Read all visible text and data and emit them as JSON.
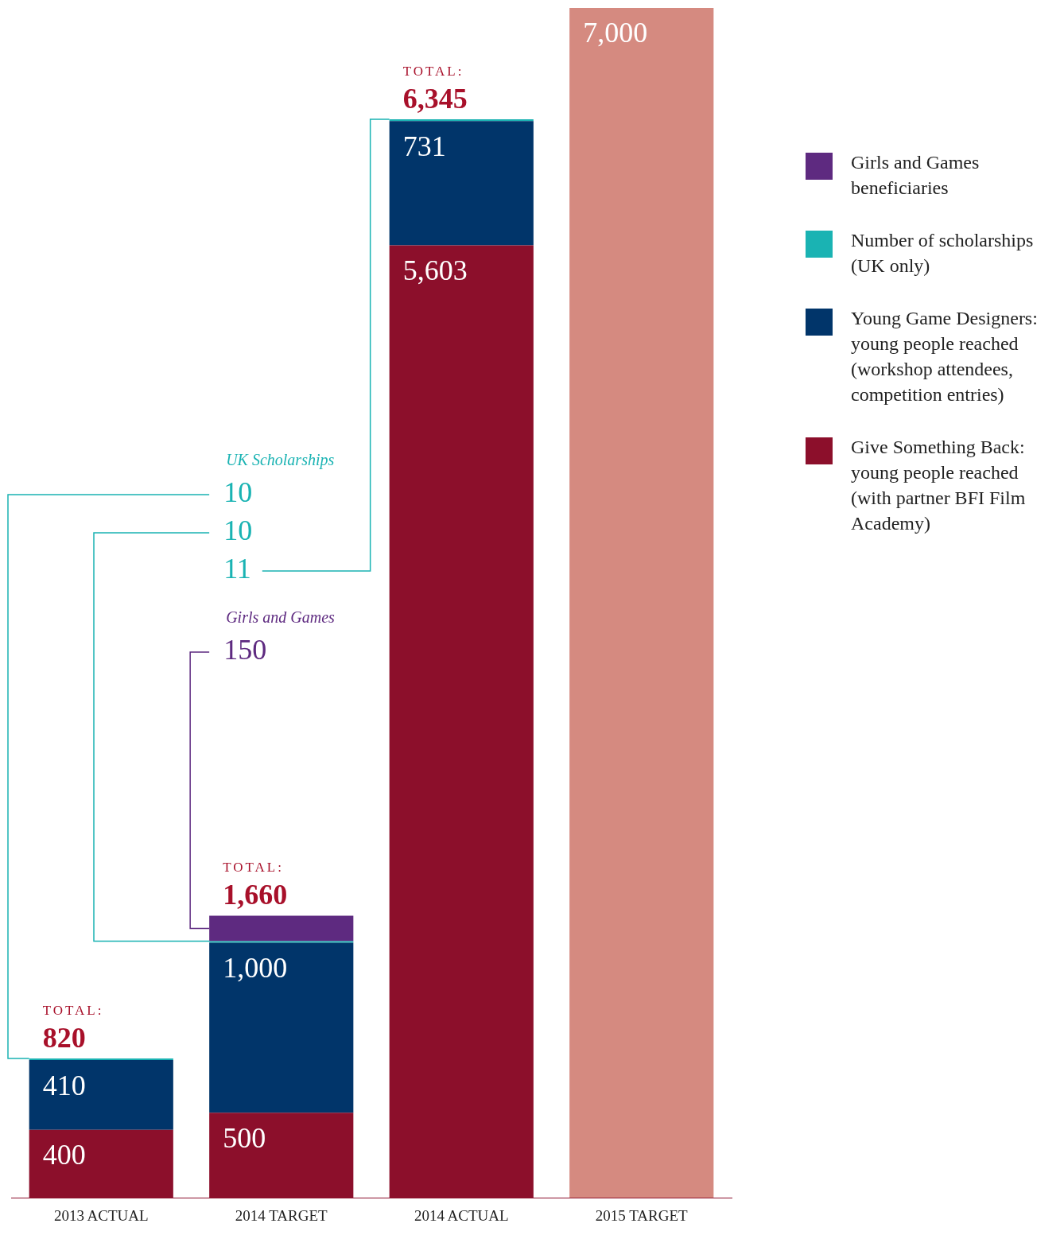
{
  "chart_data": {
    "type": "bar",
    "stacked": true,
    "categories": [
      "2013 ACTUAL",
      "2014 TARGET",
      "2014 ACTUAL",
      "2015 TARGET"
    ],
    "ylim": [
      0,
      7000
    ],
    "tick_labels": "x",
    "grid": false,
    "legend": "right",
    "series": [
      {
        "name": "Give Something Back: young people reached (with partner BFI Film Academy)",
        "color": "#8c0f2b",
        "colors": [
          "#8c0f2b",
          "#8c0f2b",
          "#8c0f2b",
          "#d58a80"
        ],
        "values": [
          400,
          500,
          5603,
          7000
        ],
        "value_labels": [
          "400",
          "500",
          "5,603",
          "7,000"
        ]
      },
      {
        "name": "Young Game Designers: young people reached (workshop attendees, competition entries)",
        "color": "#01356a",
        "values": [
          410,
          1000,
          731,
          null
        ],
        "value_labels": [
          "410",
          "1,000",
          "731",
          null
        ]
      },
      {
        "name": "Number of scholarships (UK only)",
        "color": "#1ab3b3",
        "values": [
          10,
          10,
          11,
          null
        ],
        "value_labels": [
          "10",
          "10",
          "11",
          null
        ]
      },
      {
        "name": "Girls and Games beneficiaries",
        "color": "#5e2a80",
        "values": [
          null,
          150,
          null,
          null
        ],
        "value_labels": [
          null,
          "150",
          null,
          null
        ]
      }
    ],
    "totals": [
      "TOTAL:\n820",
      "TOTAL:\n1,660",
      "TOTAL:\n6,345",
      null
    ],
    "annotations": [
      "UK Scholarships",
      "Girls and Games"
    ]
  }
}
